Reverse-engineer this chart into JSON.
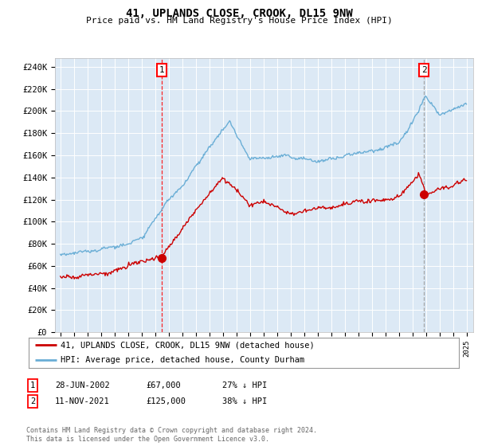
{
  "title": "41, UPLANDS CLOSE, CROOK, DL15 9NW",
  "subtitle": "Price paid vs. HM Land Registry's House Price Index (HPI)",
  "ylabel_ticks": [
    "£0",
    "£20K",
    "£40K",
    "£60K",
    "£80K",
    "£100K",
    "£120K",
    "£140K",
    "£160K",
    "£180K",
    "£200K",
    "£220K",
    "£240K"
  ],
  "ytick_values": [
    0,
    20000,
    40000,
    60000,
    80000,
    100000,
    120000,
    140000,
    160000,
    180000,
    200000,
    220000,
    240000
  ],
  "ylim": [
    0,
    248000
  ],
  "xlim_start": 1994.6,
  "xlim_end": 2025.5,
  "xtick_years": [
    1995,
    1996,
    1997,
    1998,
    1999,
    2000,
    2001,
    2002,
    2003,
    2004,
    2005,
    2006,
    2007,
    2008,
    2009,
    2010,
    2011,
    2012,
    2013,
    2014,
    2015,
    2016,
    2017,
    2018,
    2019,
    2020,
    2021,
    2022,
    2023,
    2024,
    2025
  ],
  "hpi_color": "#6aaed6",
  "price_color": "#cc0000",
  "sale1_x": 2002.49,
  "sale1_y": 67000,
  "sale2_x": 2021.86,
  "sale2_y": 125000,
  "legend1": "41, UPLANDS CLOSE, CROOK, DL15 9NW (detached house)",
  "legend2": "HPI: Average price, detached house, County Durham",
  "sale1_date": "28-JUN-2002",
  "sale1_price": "£67,000",
  "sale1_hpi": "27% ↓ HPI",
  "sale2_date": "11-NOV-2021",
  "sale2_price": "£125,000",
  "sale2_hpi": "38% ↓ HPI",
  "footnote": "Contains HM Land Registry data © Crown copyright and database right 2024.\nThis data is licensed under the Open Government Licence v3.0.",
  "background_color": "#dce9f5"
}
